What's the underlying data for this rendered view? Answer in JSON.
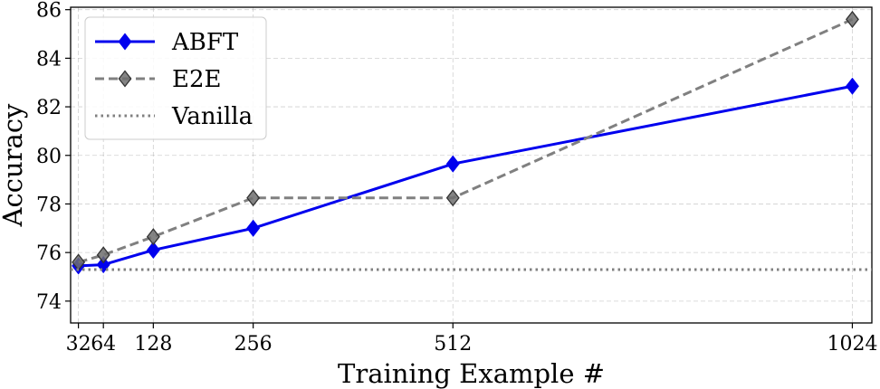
{
  "chart_data": {
    "type": "line",
    "xlabel": "Training Example #",
    "ylabel": "Accuracy",
    "x": [
      32,
      64,
      128,
      256,
      512,
      1024
    ],
    "x_tick_labels": [
      "32",
      "64",
      "128",
      "256",
      "512",
      "1024"
    ],
    "y_ticks": [
      74,
      76,
      78,
      80,
      82,
      84,
      86
    ],
    "xlim": [
      22,
      1049
    ],
    "ylim": [
      73.1,
      86.1
    ],
    "grid": true,
    "legend_position": "top-left",
    "series": [
      {
        "name": "ABFT",
        "values": [
          75.45,
          75.5,
          76.1,
          77.0,
          79.65,
          82.85
        ],
        "color": "#0000ee",
        "line_style": "solid",
        "marker": "diamond"
      },
      {
        "name": "E2E",
        "values": [
          75.6,
          75.9,
          76.65,
          78.25,
          78.25,
          85.6
        ],
        "color": "#808080",
        "line_style": "dashed",
        "marker": "diamond"
      },
      {
        "name": "Vanilla",
        "constant": 75.3,
        "color": "#808080",
        "line_style": "dotted",
        "marker": "none"
      }
    ]
  }
}
